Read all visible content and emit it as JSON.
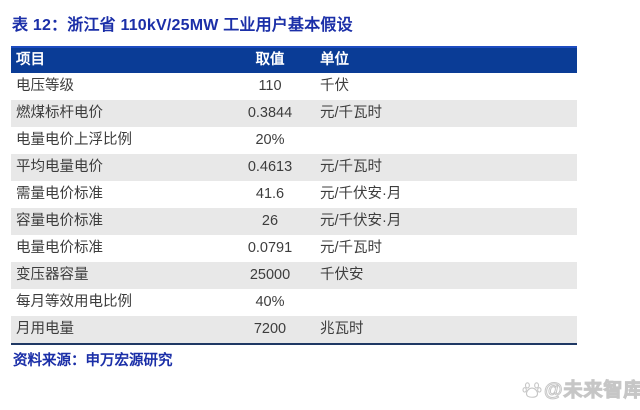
{
  "title": "表 12：浙江省 110kV/25MW 工业用户基本假设",
  "table": {
    "headers": [
      "项目",
      "取值",
      "单位"
    ],
    "rows": [
      {
        "item": "电压等级",
        "value": "110",
        "unit": "千伏"
      },
      {
        "item": "燃煤标杆电价",
        "value": "0.3844",
        "unit": "元/千瓦时"
      },
      {
        "item": "电量电价上浮比例",
        "value": "20%",
        "unit": ""
      },
      {
        "item": "平均电量电价",
        "value": "0.4613",
        "unit": "元/千瓦时"
      },
      {
        "item": "需量电价标准",
        "value": "41.6",
        "unit": "元/千伏安·月"
      },
      {
        "item": "容量电价标准",
        "value": "26",
        "unit": "元/千伏安·月"
      },
      {
        "item": "电量电价标准",
        "value": "0.0791",
        "unit": "元/千瓦时"
      },
      {
        "item": "变压器容量",
        "value": "25000",
        "unit": "千伏安"
      },
      {
        "item": "每月等效用电比例",
        "value": "40%",
        "unit": ""
      },
      {
        "item": "月用电量",
        "value": "7200",
        "unit": "兆瓦时"
      }
    ]
  },
  "source": "资料来源：申万宏源研究",
  "watermark": {
    "icon": "paw-icon",
    "text": "@未来智库"
  },
  "colors": {
    "title_blue": "#1b2fa8",
    "header_navy": "#0a3c96",
    "row_alt_gray": "#e8e8e8",
    "rule_navy": "#1f3864",
    "body_text": "#3d3d3d",
    "watermark_gray": "#c9c9c9"
  }
}
